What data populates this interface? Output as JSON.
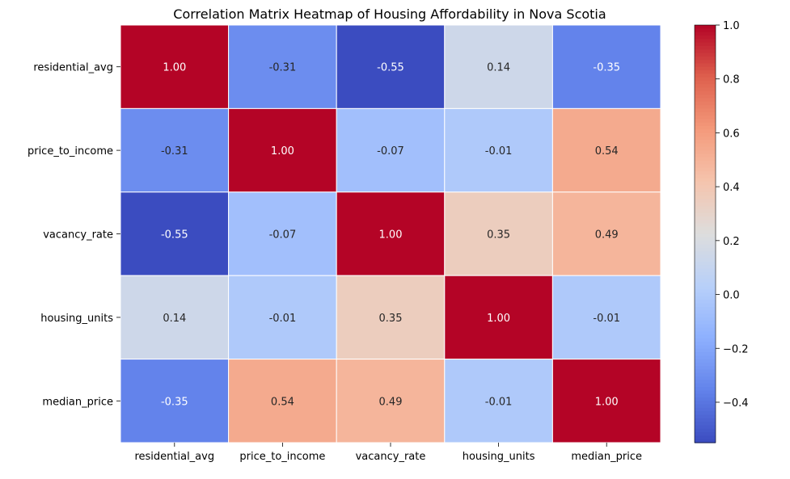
{
  "chart_data": {
    "type": "heatmap",
    "title": "Correlation Matrix Heatmap of Housing Affordability in Nova Scotia",
    "xlabel": "",
    "ylabel": "",
    "rows": [
      "residential_avg",
      "price_to_income",
      "vacancy_rate",
      "housing_units",
      "median_price"
    ],
    "columns": [
      "residential_avg",
      "price_to_income",
      "vacancy_rate",
      "housing_units",
      "median_price"
    ],
    "values": [
      [
        1.0,
        -0.31,
        -0.55,
        0.14,
        -0.35
      ],
      [
        -0.31,
        1.0,
        -0.07,
        -0.01,
        0.54
      ],
      [
        -0.55,
        -0.07,
        1.0,
        0.35,
        0.49
      ],
      [
        0.14,
        -0.01,
        0.35,
        1.0,
        -0.01
      ],
      [
        -0.35,
        0.54,
        0.49,
        -0.01,
        1.0
      ]
    ],
    "colormap": "coolwarm",
    "color_range": [
      -0.55,
      1.0
    ],
    "annotation_format": "0.00",
    "colorbar": {
      "ticks": [
        1.0,
        0.8,
        0.6,
        0.4,
        0.2,
        0.0,
        -0.2,
        -0.4
      ],
      "tick_labels": [
        "1.0",
        "0.8",
        "0.6",
        "0.4",
        "0.2",
        "0.0",
        "−0.2",
        "−0.4"
      ]
    },
    "grid": false,
    "cell_border_color": "#ffffff"
  }
}
